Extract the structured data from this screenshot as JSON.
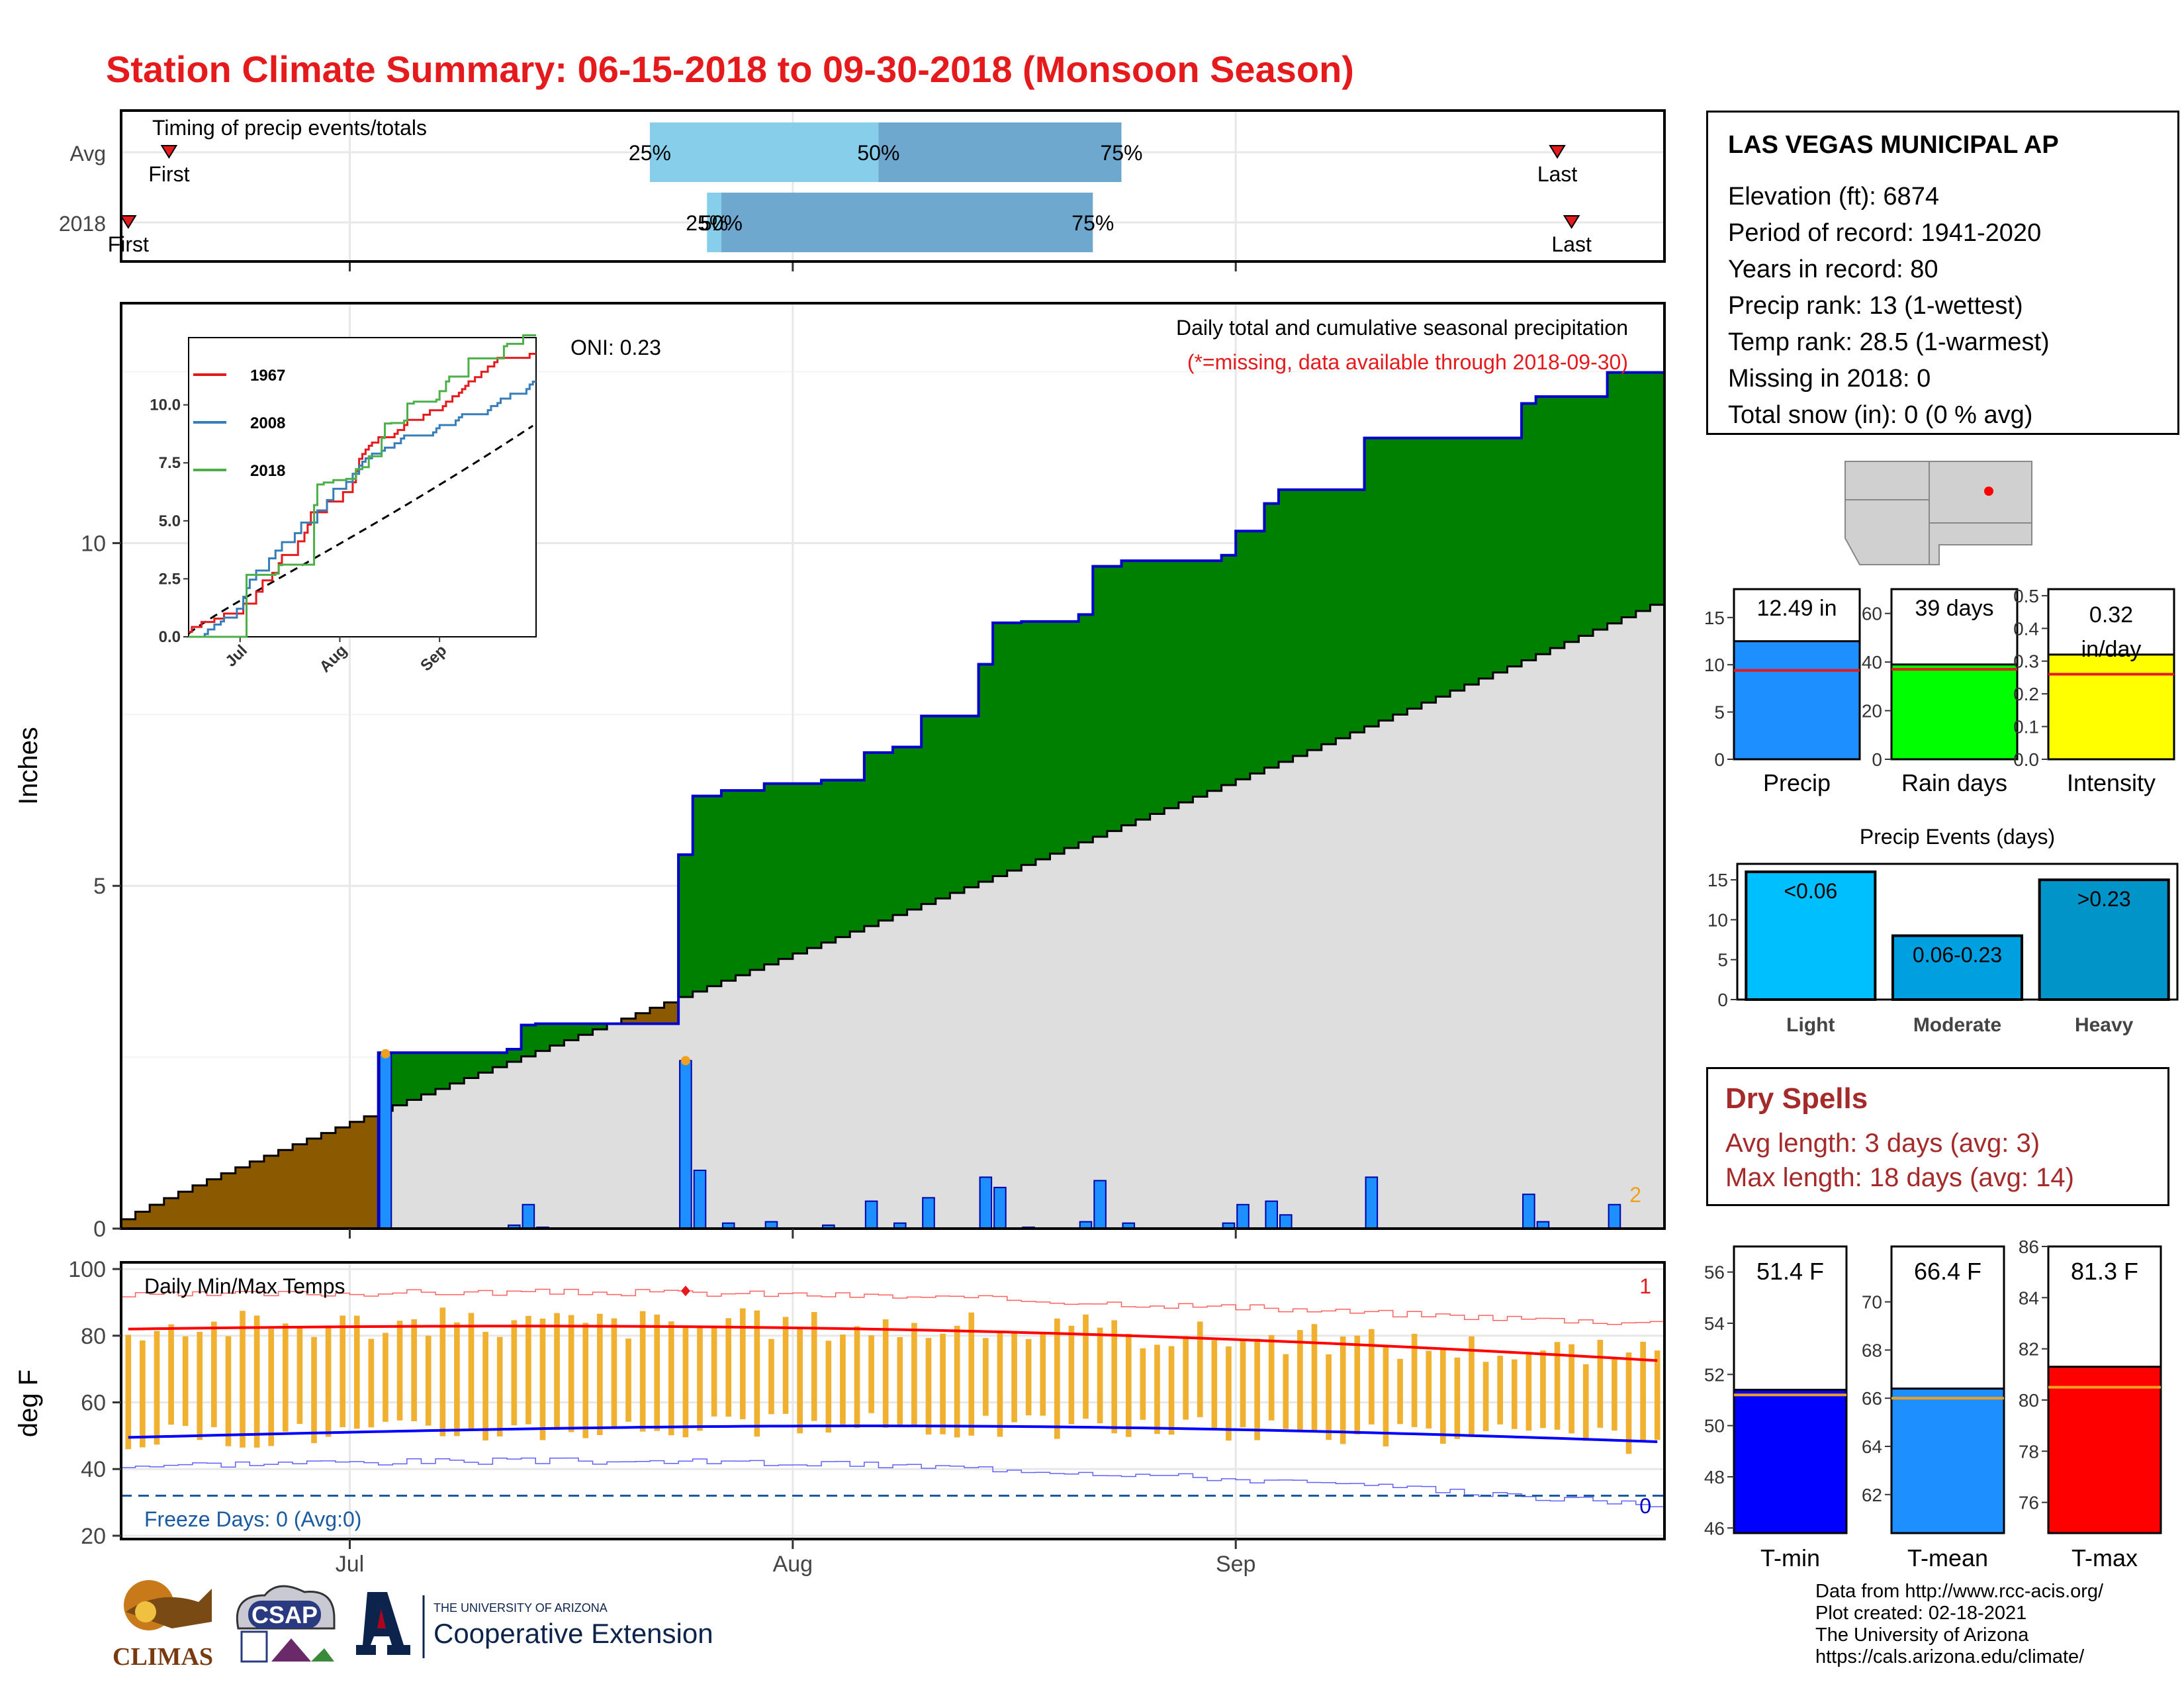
{
  "title": "Station Climate Summary: 06-15-2018 to 09-30-2018 (Monsoon Season)",
  "colors": {
    "title": "#e41a1c",
    "green_fill": "#008000",
    "normal_fill": "#dedede",
    "early_fill": "#8b5a00",
    "bars": "#1e8fff",
    "line_blue": "#0000cc",
    "temp_bar": "#f0b030",
    "tmax_line": "#ff0000",
    "tmin_line": "#0000ff",
    "light_blue": "#87ceeb",
    "steel_blue": "#6fa8cf",
    "dry_spells": "#a52a2a"
  },
  "timing": {
    "label": "Timing of precip events/totals",
    "rows": [
      {
        "name": "Avg",
        "first": "First",
        "last": "Last",
        "q25": "25%",
        "q50": "50%",
        "q75": "75%",
        "first_date": "2018-06-16",
        "last_date": "2018-09-23",
        "q25_date": "2018-07-22",
        "q50_date": "2018-08-07",
        "q75_date": "2018-08-24"
      },
      {
        "name": "2018",
        "first": "First",
        "last": "Last",
        "q25": "25%",
        "q50": "50%",
        "q75": "75%",
        "first_date": "2018-06-15",
        "last_date": "2018-09-24",
        "q25_date": "2018-07-26",
        "q50_date": "2018-07-27",
        "q75_date": "2018-08-22"
      }
    ]
  },
  "precip_panel": {
    "header": "Daily total and cumulative seasonal precipitation",
    "missing_note": "(*=missing, data available through 2018-09-30)",
    "oni": "ONI: 0.23",
    "ylabel": "Inches",
    "yticks": [
      "0",
      "5",
      "10"
    ],
    "max_count": "2",
    "xticks": [
      "Jul",
      "Aug",
      "Sep"
    ]
  },
  "inset": {
    "legend": [
      "1967",
      "2008",
      "2018"
    ],
    "legend_colors": [
      "#e41a1c",
      "#377eb8",
      "#4daf4a"
    ],
    "yticks": [
      "0.0",
      "2.5",
      "5.0",
      "7.5",
      "10.0"
    ],
    "xticks": [
      "Jul",
      "Aug",
      "Sep"
    ]
  },
  "temp_panel": {
    "label": "Daily Min/Max Temps",
    "ylabel": "deg F",
    "yticks": [
      "20",
      "40",
      "60",
      "80",
      "100"
    ],
    "freeze": "Freeze Days: 0 (Avg:0)",
    "count_high": "1",
    "count_low": "0"
  },
  "station": {
    "name": "LAS VEGAS MUNICIPAL AP",
    "lines": [
      "Elevation (ft): 6874",
      "Period of record: 1941-2020",
      "Years in record: 80",
      "Precip rank: 13 (1-wettest)",
      "Temp rank: 28.5 (1-warmest)",
      "Missing in 2018: 0",
      "Total snow (in): 0 (0 % avg)"
    ]
  },
  "summary_bars": [
    {
      "name": "Precip",
      "label": "12.49 in",
      "value": 12.49,
      "avg": 9.4,
      "ymax": 18,
      "ticks": [
        "0",
        "5",
        "10",
        "15"
      ],
      "tick_values": [
        0,
        5,
        10,
        15
      ],
      "color": "#1e8fff"
    },
    {
      "name": "Rain days",
      "label": "39 days",
      "value": 39,
      "avg": 37,
      "ymax": 70,
      "ticks": [
        "0",
        "20",
        "40",
        "60"
      ],
      "tick_values": [
        0,
        20,
        40,
        60
      ],
      "color": "#00ff00"
    },
    {
      "name": "Intensity",
      "label_top": "0.32",
      "label_bottom": "in/day",
      "value": 0.32,
      "avg": 0.26,
      "ymax": 0.52,
      "ticks": [
        "0.0",
        "0.1",
        "0.2",
        "0.3",
        "0.4",
        "0.5"
      ],
      "tick_values": [
        0,
        0.1,
        0.2,
        0.3,
        0.4,
        0.5
      ],
      "color": "#ffff00"
    }
  ],
  "events": {
    "title": "Precip Events (days)",
    "ticks": [
      "0",
      "5",
      "10",
      "15"
    ],
    "bars": [
      {
        "name": "Light",
        "label": "<0.06",
        "value": 16,
        "color": "#00bfff"
      },
      {
        "name": "Moderate",
        "label": "0.06-0.23",
        "value": 8,
        "color": "#00a0e0"
      },
      {
        "name": "Heavy",
        "label": ">0.23",
        "value": 15,
        "color": "#0094c8"
      }
    ]
  },
  "dry_spells": {
    "title": "Dry Spells",
    "avg": "Avg length: 3 days (avg: 3)",
    "max": "Max length: 18 days (avg: 14)"
  },
  "temp_bars": [
    {
      "name": "T-min",
      "label": "51.4 F",
      "value": 51.4,
      "avg": 51.2,
      "ymin": 45.8,
      "ymax": 57,
      "ticks": [
        "46",
        "48",
        "50",
        "52",
        "54",
        "56"
      ],
      "tick_values": [
        46,
        48,
        50,
        52,
        54,
        56
      ],
      "color": "#0000ff"
    },
    {
      "name": "T-mean",
      "label": "66.4 F",
      "value": 66.4,
      "avg": 66.0,
      "ymin": 60.4,
      "ymax": 72.3,
      "ticks": [
        "62",
        "64",
        "66",
        "68",
        "70"
      ],
      "tick_values": [
        62,
        64,
        66,
        68,
        70
      ],
      "color": "#1e8fff"
    },
    {
      "name": "T-max",
      "label": "81.3 F",
      "value": 81.3,
      "avg": 80.5,
      "ymin": 74.8,
      "ymax": 86,
      "ticks": [
        "76",
        "78",
        "80",
        "82",
        "84",
        "86"
      ],
      "tick_values": [
        76,
        78,
        80,
        82,
        84,
        86
      ],
      "color": "#ff0000"
    }
  ],
  "credits": [
    "Data from http://www.rcc-acis.org/",
    "Plot created: 02-18-2021",
    "The University of Arizona",
    "https://cals.arizona.edu/climate/"
  ],
  "logos": {
    "climas": "CLIMAS",
    "csap": "CSAP",
    "ua_small": "THE UNIVERSITY OF ARIZONA",
    "ua_big": "Cooperative Extension"
  },
  "chart_data": {
    "type": "bar",
    "title": "Daily total and cumulative seasonal precipitation",
    "ylabel": "Inches",
    "ylim": [
      0,
      13.5
    ],
    "x_start": "2018-06-15",
    "x_end": "2018-09-30",
    "cumulative_2018_final": 12.49,
    "normal_cumulative_final": 9.1,
    "daily_precip": [
      {
        "date": "2018-07-03",
        "value": 2.55
      },
      {
        "date": "2018-07-12",
        "value": 0.05
      },
      {
        "date": "2018-07-13",
        "value": 0.35
      },
      {
        "date": "2018-07-14",
        "value": 0.02
      },
      {
        "date": "2018-07-24",
        "value": 2.45
      },
      {
        "date": "2018-07-25",
        "value": 0.85
      },
      {
        "date": "2018-07-27",
        "value": 0.08
      },
      {
        "date": "2018-07-30",
        "value": 0.1
      },
      {
        "date": "2018-08-03",
        "value": 0.05
      },
      {
        "date": "2018-08-06",
        "value": 0.4
      },
      {
        "date": "2018-08-08",
        "value": 0.08
      },
      {
        "date": "2018-08-10",
        "value": 0.45
      },
      {
        "date": "2018-08-14",
        "value": 0.75
      },
      {
        "date": "2018-08-15",
        "value": 0.6
      },
      {
        "date": "2018-08-17",
        "value": 0.02
      },
      {
        "date": "2018-08-21",
        "value": 0.1
      },
      {
        "date": "2018-08-22",
        "value": 0.7
      },
      {
        "date": "2018-08-24",
        "value": 0.08
      },
      {
        "date": "2018-08-31",
        "value": 0.08
      },
      {
        "date": "2018-09-01",
        "value": 0.35
      },
      {
        "date": "2018-09-03",
        "value": 0.4
      },
      {
        "date": "2018-09-04",
        "value": 0.2
      },
      {
        "date": "2018-09-10",
        "value": 0.75
      },
      {
        "date": "2018-09-21",
        "value": 0.5
      },
      {
        "date": "2018-09-22",
        "value": 0.1
      },
      {
        "date": "2018-09-27",
        "value": 0.35
      }
    ]
  }
}
